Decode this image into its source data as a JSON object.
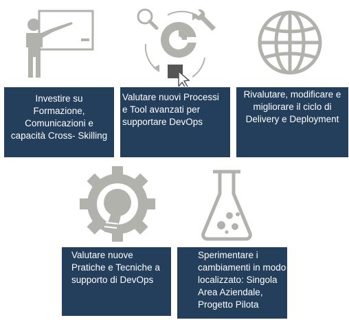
{
  "colors": {
    "box_fill": "#243f5c",
    "box_text": "#ffffff",
    "icon_gray": "#b2b2ad"
  },
  "cards": [
    {
      "icon": "teacher-presentation-icon",
      "text": "Investire su\nFormazione,\nComunicazioni e\ncapacità Cross- Skilling"
    },
    {
      "icon": "tools-process-cycle-icon",
      "text": "Valutare nuovi Processi\ne Tool avanzati per\nsupportare DevOps"
    },
    {
      "icon": "globe-icon",
      "text": "Rivalutare, modificare e\nmigliorare il ciclo di\nDelivery e Deployment"
    },
    {
      "icon": "gear-lightbulb-icon",
      "text": "Valutare nuove\nPratiche e Tecniche a\nsupporto di DevOps"
    },
    {
      "icon": "flask-icon",
      "text": "Sperimentare i\ncambiamenti in modo\nlocalizzato: Singola\nArea Aziendale,\nProgetto Pilota"
    }
  ]
}
